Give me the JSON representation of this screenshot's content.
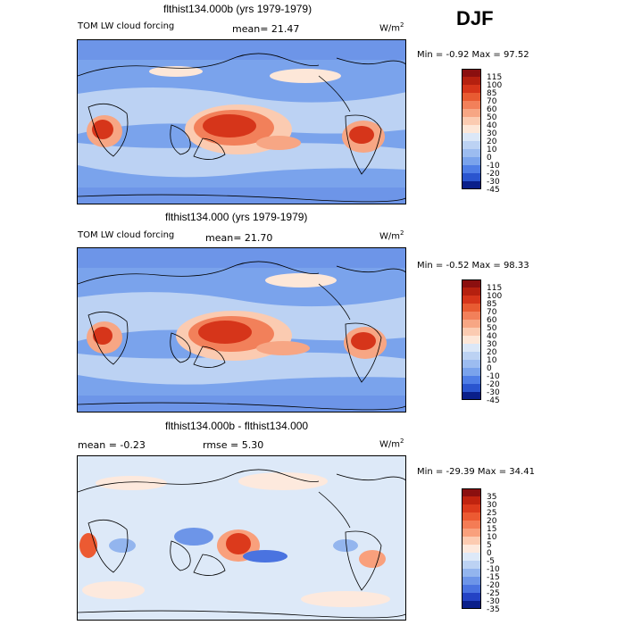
{
  "season": "DJF",
  "panels": [
    {
      "title": "flthist134.000b (yrs 1979-1979)",
      "left_label": "TOM LW cloud forcing",
      "mid_label": "mean=  21.47",
      "units": "W/m",
      "units_sup": "2",
      "minmax": "Min =  -0.92 Max =  97.52",
      "levels": [
        "115",
        "100",
        "85",
        "70",
        "60",
        "50",
        "40",
        "30",
        "20",
        "10",
        "0",
        "-10",
        "-20",
        "-30",
        "-45"
      ],
      "colors": [
        "#8b0f0f",
        "#b5200f",
        "#d6351a",
        "#e85b32",
        "#f2805a",
        "#f7a684",
        "#fbcbb1",
        "#fde7d8",
        "#dbe7f7",
        "#bcd2f3",
        "#9cbcf0",
        "#7aa3ec",
        "#4f7ee6",
        "#2a55cf",
        "#0a1f8a"
      ],
      "fill": "#7aa3ec"
    },
    {
      "title": "flthist134.000 (yrs 1979-1979)",
      "left_label": "TOM LW cloud forcing",
      "mid_label": "mean=  21.70",
      "units": "W/m",
      "units_sup": "2",
      "minmax": "Min =  -0.52 Max =  98.33",
      "levels": [
        "115",
        "100",
        "85",
        "70",
        "60",
        "50",
        "40",
        "30",
        "20",
        "10",
        "0",
        "-10",
        "-20",
        "-30",
        "-45"
      ],
      "colors": [
        "#8b0f0f",
        "#b5200f",
        "#d6351a",
        "#e85b32",
        "#f2805a",
        "#f7a684",
        "#fbcbb1",
        "#fde7d8",
        "#dbe7f7",
        "#bcd2f3",
        "#9cbcf0",
        "#7aa3ec",
        "#4f7ee6",
        "#2a55cf",
        "#0a1f8a"
      ],
      "fill": "#7aa3ec"
    },
    {
      "title": "flthist134.000b - flthist134.000",
      "left_label": "mean =   -0.23",
      "mid_label": "rmse =    5.30",
      "units": "W/m",
      "units_sup": "2",
      "minmax": "Min = -29.39 Max =  34.41",
      "levels": [
        "35",
        "30",
        "25",
        "20",
        "15",
        "10",
        "5",
        "0",
        "-5",
        "-10",
        "-15",
        "-20",
        "-25",
        "-30",
        "-35"
      ],
      "colors": [
        "#8b0f0f",
        "#c0230f",
        "#dc3a1c",
        "#ec5a32",
        "#f47c55",
        "#f9a07c",
        "#fccbb1",
        "#fde9dd",
        "#dde9f8",
        "#bcd2f3",
        "#93b5ee",
        "#6d95e8",
        "#4a73e0",
        "#2443c4",
        "#0a1f8a"
      ],
      "fill": "#dde9f8"
    }
  ],
  "chart_data": [
    {
      "type": "heatmap",
      "title": "flthist134.000b (yrs 1979-1979)",
      "variable": "TOM LW cloud forcing",
      "mean": 21.47,
      "min": -0.92,
      "max": 97.52,
      "units": "W/m2",
      "contour_levels": [
        -45,
        -30,
        -20,
        -10,
        0,
        10,
        20,
        30,
        40,
        50,
        60,
        70,
        85,
        100,
        115
      ]
    },
    {
      "type": "heatmap",
      "title": "flthist134.000 (yrs 1979-1979)",
      "variable": "TOM LW cloud forcing",
      "mean": 21.7,
      "min": -0.52,
      "max": 98.33,
      "units": "W/m2",
      "contour_levels": [
        -45,
        -30,
        -20,
        -10,
        0,
        10,
        20,
        30,
        40,
        50,
        60,
        70,
        85,
        100,
        115
      ]
    },
    {
      "type": "heatmap",
      "title": "flthist134.000b - flthist134.000",
      "mean": -0.23,
      "rmse": 5.3,
      "min": -29.39,
      "max": 34.41,
      "units": "W/m2",
      "contour_levels": [
        -35,
        -30,
        -25,
        -20,
        -15,
        -10,
        -5,
        0,
        5,
        10,
        15,
        20,
        25,
        30,
        35
      ]
    }
  ]
}
